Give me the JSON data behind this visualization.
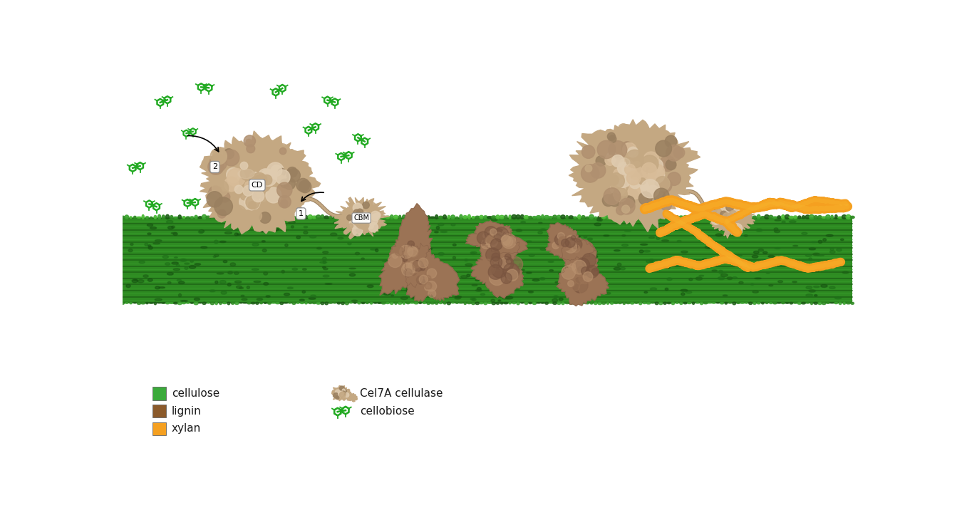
{
  "background_color": "#ffffff",
  "figure_size": [
    13.5,
    7.09
  ],
  "dpi": 100,
  "cellulose_color_main": "#2E8B22",
  "cellulose_color_dark": "#1B5E14",
  "cellulose_color_mid": "#3AA32E",
  "lignin_color": "#9B7355",
  "lignin_light": "#B8916E",
  "lignin_dark": "#7A5540",
  "xylan_color": "#F5A020",
  "enzyme_color": "#C4A882",
  "enzyme_light": "#E0CCB0",
  "enzyme_dark": "#9A8060",
  "enzyme_shadow": "#8A7050",
  "cellobiose_color": "#22AA22",
  "text_color": "#1a1a1a",
  "legend_cellulose": "#3aaa3a",
  "legend_lignin": "#8B5A2B",
  "legend_xylan": "#F5A020",
  "label_CD": "CD",
  "label_CBM": "CBM",
  "label_1": "1",
  "label_2": "2"
}
